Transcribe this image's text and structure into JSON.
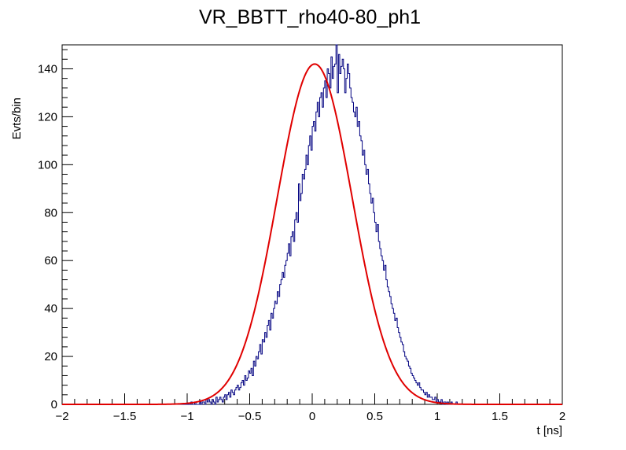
{
  "chart_data": {
    "type": "histogram",
    "title": "VR_BBTT_rho40-80_ph1",
    "xlabel": "t [ns]",
    "ylabel": "Evts/bin",
    "xlim": [
      -2,
      2
    ],
    "ylim": [
      0,
      150
    ],
    "x_major_ticks": [
      -2,
      -1.5,
      -1,
      -0.5,
      0,
      0.5,
      1,
      1.5,
      2
    ],
    "x_tick_labels": [
      "−2",
      "−1.5",
      "−1",
      "−0.5",
      "0",
      "0.5",
      "1",
      "1.5",
      "2"
    ],
    "y_major_ticks": [
      0,
      20,
      40,
      60,
      80,
      100,
      120,
      140
    ],
    "y_tick_labels": [
      "0",
      "20",
      "40",
      "60",
      "80",
      "100",
      "120",
      "140"
    ],
    "grid": false,
    "series": [
      {
        "kind": "histogram",
        "color": "#000080",
        "bin_width": 0.01,
        "bin_start": -1.0,
        "counts": [
          0,
          0,
          0,
          1,
          0,
          0,
          1,
          0,
          0,
          0,
          1,
          0,
          1,
          1,
          0,
          2,
          1,
          2,
          1,
          0,
          2,
          1,
          0,
          3,
          1,
          2,
          3,
          2,
          1,
          3,
          4,
          2,
          4,
          5,
          3,
          6,
          5,
          4,
          6,
          7,
          8,
          6,
          7,
          9,
          10,
          8,
          12,
          10,
          11,
          14,
          13,
          15,
          12,
          18,
          16,
          20,
          19,
          22,
          25,
          21,
          27,
          26,
          30,
          28,
          33,
          35,
          31,
          38,
          36,
          40,
          43,
          42,
          47,
          45,
          50,
          52,
          55,
          53,
          58,
          60,
          63,
          67,
          62,
          70,
          72,
          68,
          77,
          80,
          76,
          92,
          85,
          88,
          96,
          94,
          98,
          104,
          100,
          108,
          112,
          106,
          116,
          118,
          114,
          122,
          126,
          120,
          128,
          130,
          124,
          132,
          135,
          128,
          140,
          138,
          132,
          145,
          136,
          141,
          142,
          150,
          130,
          146,
          138,
          141,
          144,
          140,
          130,
          136,
          142,
          138,
          132,
          128,
          126,
          122,
          120,
          124,
          116,
          118,
          112,
          110,
          104,
          106,
          100,
          96,
          98,
          92,
          88,
          84,
          86,
          80,
          76,
          72,
          75,
          68,
          65,
          62,
          60,
          56,
          58,
          52,
          49,
          47,
          45,
          42,
          40,
          38,
          35,
          36,
          32,
          30,
          28,
          26,
          25,
          22,
          20,
          19,
          18,
          16,
          15,
          13,
          12,
          11,
          10,
          9,
          8,
          9,
          7,
          6,
          6,
          5,
          4,
          5,
          3,
          4,
          3,
          3,
          2,
          2,
          3,
          1,
          2,
          1,
          1,
          2,
          0,
          1,
          1,
          0,
          1,
          0,
          0,
          1,
          0,
          0,
          0,
          1,
          0,
          0,
          0,
          0,
          0
        ]
      },
      {
        "kind": "gaussian-fit",
        "color": "#e00000",
        "amplitude": 142,
        "mean": 0.02,
        "sigma": 0.3
      }
    ]
  }
}
